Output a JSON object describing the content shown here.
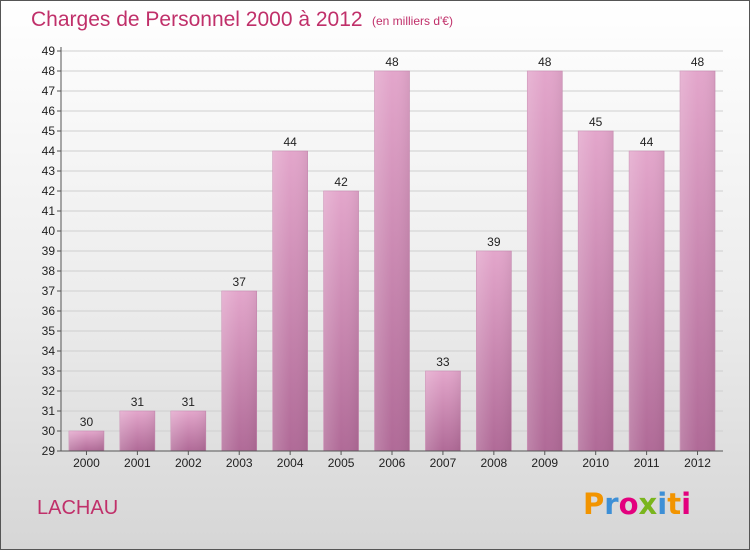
{
  "header": {
    "title": "Charges de Personnel 2000 à 2012",
    "unit_note": "(en milliers d'€)"
  },
  "footer": {
    "place": "LACHAU",
    "logo_letters": [
      "P",
      "r",
      "o",
      "x",
      "i",
      "t",
      "i"
    ],
    "logo_colors": [
      "#f29400",
      "#3d8fd6",
      "#e3007e",
      "#7ab51d",
      "#3d8fd6",
      "#f29400",
      "#e3007e"
    ]
  },
  "chart_data": {
    "type": "bar",
    "categories": [
      "2000",
      "2001",
      "2002",
      "2003",
      "2004",
      "2005",
      "2006",
      "2007",
      "2008",
      "2009",
      "2010",
      "2011",
      "2012"
    ],
    "values": [
      30,
      31,
      31,
      37,
      44,
      42,
      48,
      33,
      39,
      48,
      45,
      44,
      48
    ],
    "title": "Charges de Personnel 2000 à 2012",
    "ylim": [
      29,
      49
    ],
    "yticks": [
      29,
      30,
      31,
      32,
      33,
      34,
      35,
      36,
      37,
      38,
      39,
      40,
      41,
      42,
      43,
      44,
      45,
      46,
      47,
      48,
      49
    ],
    "grid": true,
    "bar_color": "#e0a2c8"
  }
}
